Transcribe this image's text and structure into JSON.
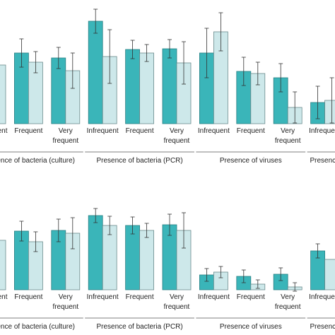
{
  "chart_data": [
    {
      "type": "bar",
      "groups": [
        {
          "name": "Presence of bacteria (culture)",
          "categories": [
            "Infrequent",
            "Frequent",
            "Very frequent"
          ]
        },
        {
          "name": "Presence of bacteria (PCR)",
          "categories": [
            "Infrequent",
            "Frequent",
            "Very frequent"
          ]
        },
        {
          "name": "Presence of viruses",
          "categories": [
            "Infrequent",
            "Frequent",
            "Very frequent"
          ]
        },
        {
          "name": "Presence",
          "categories": [
            "Infrequent"
          ]
        }
      ],
      "series": [
        {
          "color": "#3ab5b9",
          "values": [
            null,
            100,
            93,
            145,
            105,
            106,
            100,
            74,
            65,
            30
          ],
          "errors": [
            null,
            20,
            15,
            17,
            13,
            13,
            35,
            20,
            20,
            23
          ]
        },
        {
          "color": "#cde8ea",
          "values": [
            83,
            87,
            75,
            95,
            100,
            86,
            130,
            71,
            23,
            33
          ],
          "errors": [
            null,
            15,
            25,
            38,
            12,
            30,
            27,
            16,
            22,
            32
          ]
        }
      ]
    },
    {
      "type": "bar",
      "groups": [
        {
          "name": "Presence of bacteria (culture)",
          "categories": [
            "Infrequent",
            "Frequent",
            "Very frequent"
          ]
        },
        {
          "name": "Presence of bacteria (PCR)",
          "categories": [
            "Infrequent",
            "Frequent",
            "Very frequent"
          ]
        },
        {
          "name": "Presence of viruses",
          "categories": [
            "Infrequent",
            "Frequent",
            "Very frequent"
          ]
        },
        {
          "name": "Presence",
          "categories": [
            "Infrequent"
          ]
        }
      ],
      "series": [
        {
          "color": "#3ab5b9",
          "values": [
            null,
            83,
            84,
            105,
            91,
            92,
            21,
            19,
            22,
            55
          ],
          "errors": [
            null,
            14,
            16,
            10,
            12,
            15,
            9,
            9,
            9,
            10
          ]
        },
        {
          "color": "#cde8ea",
          "values": [
            70,
            68,
            80,
            91,
            84,
            84,
            25,
            8,
            4,
            43
          ],
          "errors": [
            null,
            14,
            22,
            13,
            10,
            25,
            8,
            6,
            6,
            null
          ]
        }
      ]
    }
  ]
}
